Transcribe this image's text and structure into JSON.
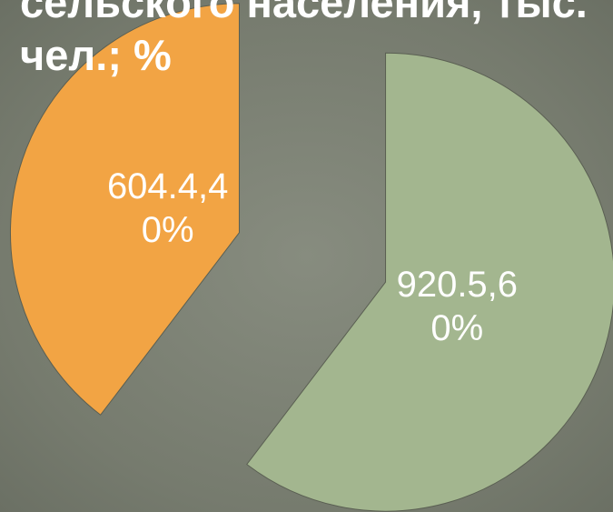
{
  "chart_data": {
    "type": "pie",
    "title": "сельского населения, тыс. чел.; %",
    "categories": [
      null,
      null
    ],
    "values": [
      604.4,
      920.5
    ],
    "value_labels": [
      "604.4,40%",
      "920.5,60%"
    ],
    "colors": [
      "#f2a444",
      "#a3b68f"
    ]
  }
}
